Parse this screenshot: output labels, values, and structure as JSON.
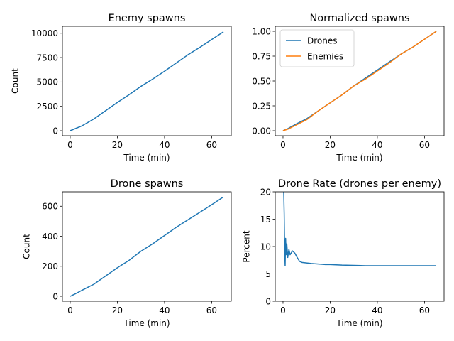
{
  "chart_data": [
    {
      "type": "line",
      "title": "Enemy spawns",
      "xlabel": "Time (min)",
      "ylabel": "Count",
      "xlim": [
        -3.3,
        68.3
      ],
      "ylim": [
        -510,
        10710
      ],
      "xticks": [
        0,
        20,
        40,
        60
      ],
      "xtick_labels": [
        "0",
        "20",
        "40",
        "60"
      ],
      "yticks": [
        0,
        2500,
        5000,
        7500,
        10000
      ],
      "ytick_labels": [
        "0",
        "2500",
        "5000",
        "7500",
        "10000"
      ],
      "legend": false,
      "series": [
        {
          "color": "#1f77b4",
          "x": [
            0,
            2,
            5,
            10,
            15,
            20,
            25,
            30,
            35,
            40,
            45,
            50,
            55,
            60,
            65
          ],
          "y": [
            0,
            200,
            500,
            1200,
            2050,
            2900,
            3700,
            4550,
            5300,
            6100,
            6950,
            7800,
            8550,
            9350,
            10150
          ]
        }
      ]
    },
    {
      "type": "line",
      "title": "Normalized spawns",
      "xlabel": "Time (min)",
      "ylabel": "",
      "xlim": [
        -3.3,
        68.3
      ],
      "ylim": [
        -0.05,
        1.05
      ],
      "xticks": [
        0,
        20,
        40,
        60
      ],
      "xtick_labels": [
        "0",
        "20",
        "40",
        "60"
      ],
      "yticks": [
        0,
        0.25,
        0.5,
        0.75,
        1.0
      ],
      "ytick_labels": [
        "0.00",
        "0.25",
        "0.50",
        "0.75",
        "1.00"
      ],
      "legend": true,
      "legend_position": "upper-left",
      "series": [
        {
          "name": "Drones",
          "color": "#1f77b4",
          "x": [
            0,
            2,
            5,
            10,
            15,
            20,
            25,
            30,
            35,
            40,
            45,
            50,
            55,
            60,
            65
          ],
          "y": [
            0,
            0.02,
            0.06,
            0.12,
            0.2,
            0.28,
            0.36,
            0.45,
            0.53,
            0.61,
            0.69,
            0.77,
            0.84,
            0.92,
            1.0
          ]
        },
        {
          "name": "Enemies",
          "color": "#ff7f0e",
          "x": [
            0,
            2,
            5,
            10,
            15,
            20,
            25,
            30,
            35,
            40,
            45,
            50,
            55,
            60,
            65
          ],
          "y": [
            0,
            0.015,
            0.05,
            0.11,
            0.2,
            0.28,
            0.36,
            0.45,
            0.52,
            0.6,
            0.68,
            0.77,
            0.84,
            0.92,
            1.0
          ]
        }
      ]
    },
    {
      "type": "line",
      "title": "Drone spawns",
      "xlabel": "Time (min)",
      "ylabel": "Count",
      "xlim": [
        -3.3,
        68.3
      ],
      "ylim": [
        -33,
        696
      ],
      "xticks": [
        0,
        20,
        40,
        60
      ],
      "xtick_labels": [
        "0",
        "20",
        "40",
        "60"
      ],
      "yticks": [
        0,
        200,
        400,
        600
      ],
      "ytick_labels": [
        "0",
        "200",
        "400",
        "600"
      ],
      "legend": false,
      "series": [
        {
          "color": "#1f77b4",
          "x": [
            0,
            2,
            5,
            10,
            15,
            20,
            25,
            30,
            35,
            40,
            45,
            50,
            55,
            60,
            65
          ],
          "y": [
            0,
            15,
            40,
            80,
            135,
            190,
            240,
            300,
            350,
            405,
            460,
            510,
            560,
            610,
            662
          ]
        }
      ]
    },
    {
      "type": "line",
      "title": "Drone Rate (drones per enemy)",
      "xlabel": "Time (min)",
      "ylabel": "Percent",
      "xlim": [
        -3.3,
        68.3
      ],
      "ylim": [
        0,
        20
      ],
      "xticks": [
        0,
        20,
        40,
        60
      ],
      "xtick_labels": [
        "0",
        "20",
        "40",
        "60"
      ],
      "yticks": [
        0,
        5,
        10,
        15,
        20
      ],
      "ytick_labels": [
        "0",
        "5",
        "10",
        "15",
        "20"
      ],
      "legend": false,
      "series": [
        {
          "color": "#1f77b4",
          "x": [
            0.3,
            0.5,
            0.7,
            0.9,
            1.1,
            1.3,
            1.6,
            2,
            2.5,
            3,
            4,
            5,
            6,
            7,
            8,
            10,
            12,
            15,
            18,
            20,
            25,
            30,
            35,
            40,
            45,
            50,
            55,
            60,
            65
          ],
          "y": [
            20,
            16,
            9,
            6.5,
            11.5,
            8.5,
            10.5,
            8,
            9.5,
            8.5,
            9.2,
            8.8,
            8,
            7.3,
            7.1,
            7,
            6.9,
            6.8,
            6.7,
            6.7,
            6.6,
            6.55,
            6.5,
            6.5,
            6.5,
            6.5,
            6.5,
            6.5,
            6.5
          ]
        }
      ]
    }
  ]
}
